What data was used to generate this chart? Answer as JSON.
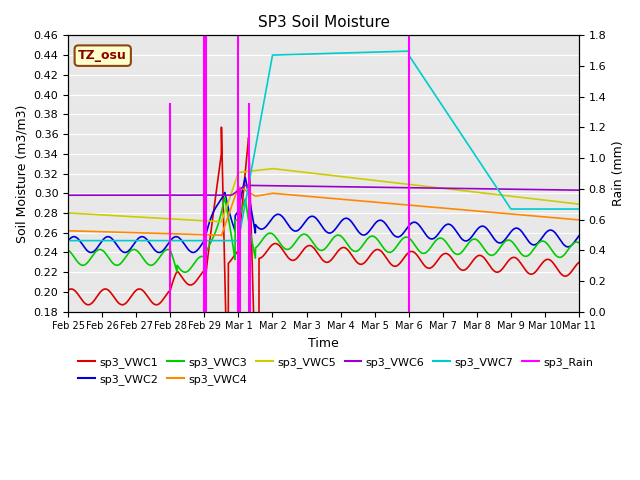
{
  "title": "SP3 Soil Moisture",
  "xlabel": "Time",
  "ylabel_left": "Soil Moisture (m3/m3)",
  "ylabel_right": "Rain (mm)",
  "ylim_left": [
    0.18,
    0.46
  ],
  "ylim_right": [
    0.0,
    1.8
  ],
  "yticks_left": [
    0.18,
    0.2,
    0.22,
    0.24,
    0.26,
    0.28,
    0.3,
    0.32,
    0.34,
    0.36,
    0.38,
    0.4,
    0.42,
    0.44,
    0.46
  ],
  "yticks_right": [
    0.0,
    0.2,
    0.4,
    0.6,
    0.8,
    1.0,
    1.2,
    1.4,
    1.6,
    1.8
  ],
  "bg_color": "#e8e8e8",
  "annotation_text": "TZ_osu",
  "annotation_bg": "#ffffcc",
  "annotation_border": "#8B4513",
  "legend_entries": [
    {
      "label": "sp3_VWC1",
      "color": "#dd0000"
    },
    {
      "label": "sp3_VWC2",
      "color": "#0000dd"
    },
    {
      "label": "sp3_VWC3",
      "color": "#00cc00"
    },
    {
      "label": "sp3_VWC4",
      "color": "#ff8800"
    },
    {
      "label": "sp3_VWC5",
      "color": "#cccc00"
    },
    {
      "label": "sp3_VWC6",
      "color": "#9900cc"
    },
    {
      "label": "sp3_VWC7",
      "color": "#00cccc"
    },
    {
      "label": "sp3_Rain",
      "color": "#ff00ff"
    }
  ],
  "xticklabels": [
    "Feb 25",
    "Feb 26",
    "Feb 27",
    "Feb 28",
    "Feb 29",
    "Mar 1",
    "Mar 2",
    "Mar 3",
    "Mar 4",
    "Mar 5",
    "Mar 6",
    "Mar 7",
    "Mar 8",
    "Mar 9",
    "Mar 10",
    "Mar 11"
  ],
  "xtick_positions": [
    0,
    1,
    2,
    3,
    4,
    5,
    6,
    7,
    8,
    9,
    10,
    11,
    12,
    13,
    14,
    15
  ]
}
